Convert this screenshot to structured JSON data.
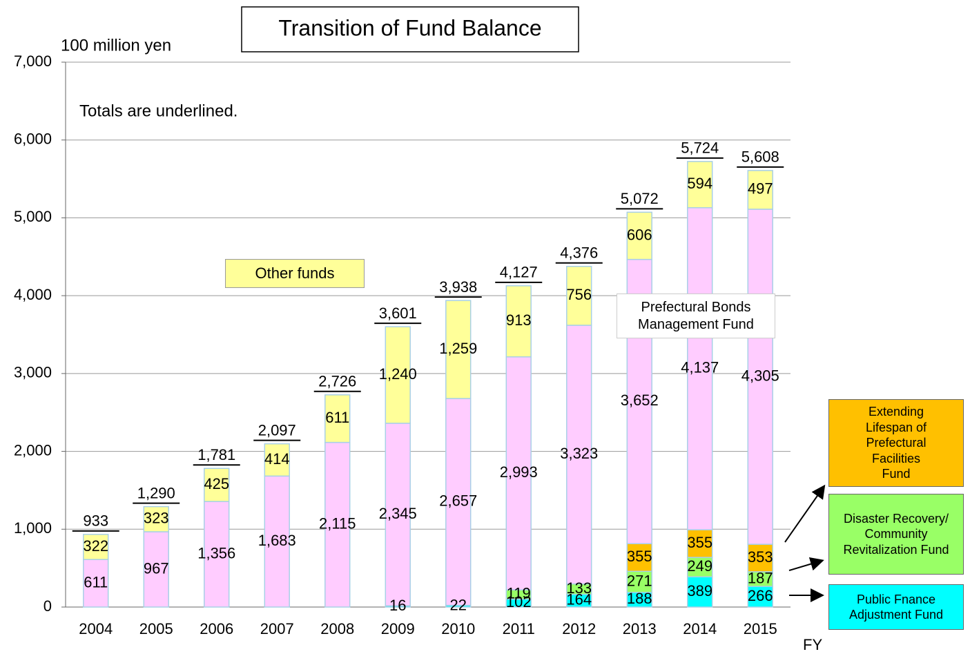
{
  "chart_data": {
    "type": "stacked_bar",
    "title": "Transition of Fund Balance",
    "y_label": "100 million yen",
    "x_label": "FY",
    "annotation": "Totals are underlined.",
    "categories": [
      "2004",
      "2005",
      "2006",
      "2007",
      "2008",
      "2009",
      "2010",
      "2011",
      "2012",
      "2013",
      "2014",
      "2015"
    ],
    "ylim": [
      0,
      7000
    ],
    "yticks": [
      0,
      {
        "value": 1000,
        "label": "1,000"
      },
      {
        "value": 2000,
        "label": "2,000"
      },
      {
        "value": 3000,
        "label": "3,000"
      },
      {
        "value": 4000,
        "label": "4,000"
      },
      {
        "value": 5000,
        "label": "5,000"
      },
      {
        "value": 6000,
        "label": "6,000"
      },
      {
        "value": 7000,
        "label": "7,000"
      }
    ],
    "grid": true,
    "series": [
      {
        "name": "Public Fnance Adjustment Fund",
        "color": "#00ffff",
        "values": [
          null,
          null,
          null,
          null,
          null,
          16,
          22,
          102,
          164,
          188,
          389,
          266
        ],
        "value_labels": [
          null,
          null,
          null,
          null,
          null,
          "16",
          "22",
          "102",
          "164",
          "188",
          "389",
          "266"
        ]
      },
      {
        "name": "Disaster Recovery/ Community Revitalization Fund",
        "color": "#99ff66",
        "values": [
          null,
          null,
          null,
          null,
          null,
          null,
          null,
          119,
          133,
          271,
          249,
          187
        ],
        "value_labels": [
          null,
          null,
          null,
          null,
          null,
          null,
          null,
          "119",
          "133",
          "271",
          "249",
          "187"
        ]
      },
      {
        "name": "Extending Lifespan of Prefectural Facilities  Fund",
        "color": "#ffc000",
        "values": [
          null,
          null,
          null,
          null,
          null,
          null,
          null,
          null,
          null,
          355,
          355,
          353
        ],
        "value_labels": [
          null,
          null,
          null,
          null,
          null,
          null,
          null,
          null,
          null,
          "355",
          "355",
          "353"
        ]
      },
      {
        "name": "Prefectural Bonds Management Fund",
        "color": "#ffccff",
        "values": [
          611,
          967,
          1356,
          1683,
          2115,
          2345,
          2657,
          2993,
          3323,
          3652,
          4137,
          4305
        ],
        "value_labels": [
          "611",
          "967",
          "1,356",
          "1,683",
          "2,115",
          "2,345",
          "2,657",
          "2,993",
          "3,323",
          "3,652",
          "4,137",
          "4,305"
        ]
      },
      {
        "name": "Other funds",
        "color": "#ffff99",
        "values": [
          322,
          323,
          425,
          414,
          611,
          1240,
          1259,
          913,
          756,
          606,
          594,
          497
        ],
        "value_labels": [
          "322",
          "323",
          "425",
          "414",
          "611",
          "1,240",
          "1,259",
          "913",
          "756",
          "606",
          "594",
          "497"
        ]
      }
    ],
    "totals": [
      933,
      1290,
      1781,
      2097,
      2726,
      3601,
      3938,
      4127,
      4376,
      5072,
      5724,
      5608
    ],
    "totals_labels": [
      "933",
      "1,290",
      "1,781",
      "2,097",
      "2,726",
      "3,601",
      "3,938",
      "4,127",
      "4,376",
      "5,072",
      "5,724",
      "5,608"
    ]
  }
}
